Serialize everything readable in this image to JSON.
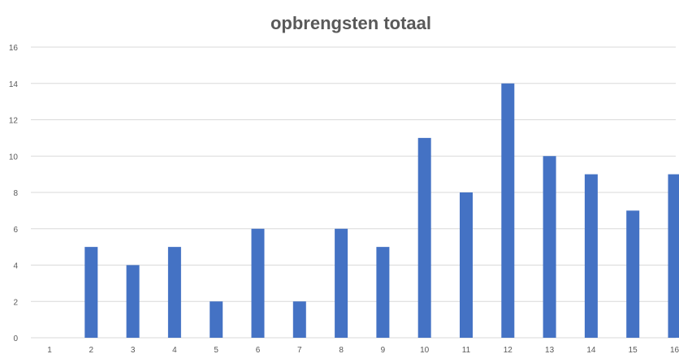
{
  "chart_data": {
    "type": "bar",
    "title": "opbrengsten totaal",
    "xlabel": "",
    "ylabel": "",
    "categories": [
      "1",
      "2",
      "3",
      "4",
      "5",
      "6",
      "7",
      "8",
      "9",
      "10",
      "11",
      "12",
      "13",
      "14",
      "15",
      "16"
    ],
    "values": [
      0,
      5,
      4,
      5,
      2,
      6,
      2,
      6,
      5,
      11,
      8,
      14,
      10,
      9,
      7,
      9
    ],
    "ylim": [
      0,
      16
    ],
    "yticks": [
      "0",
      "2",
      "4",
      "6",
      "8",
      "10",
      "12",
      "14",
      "16"
    ],
    "grid": true,
    "legend": "none",
    "bar_color": "#4472c4",
    "grid_color": "#d9d9d9",
    "text_color": "#595959"
  }
}
